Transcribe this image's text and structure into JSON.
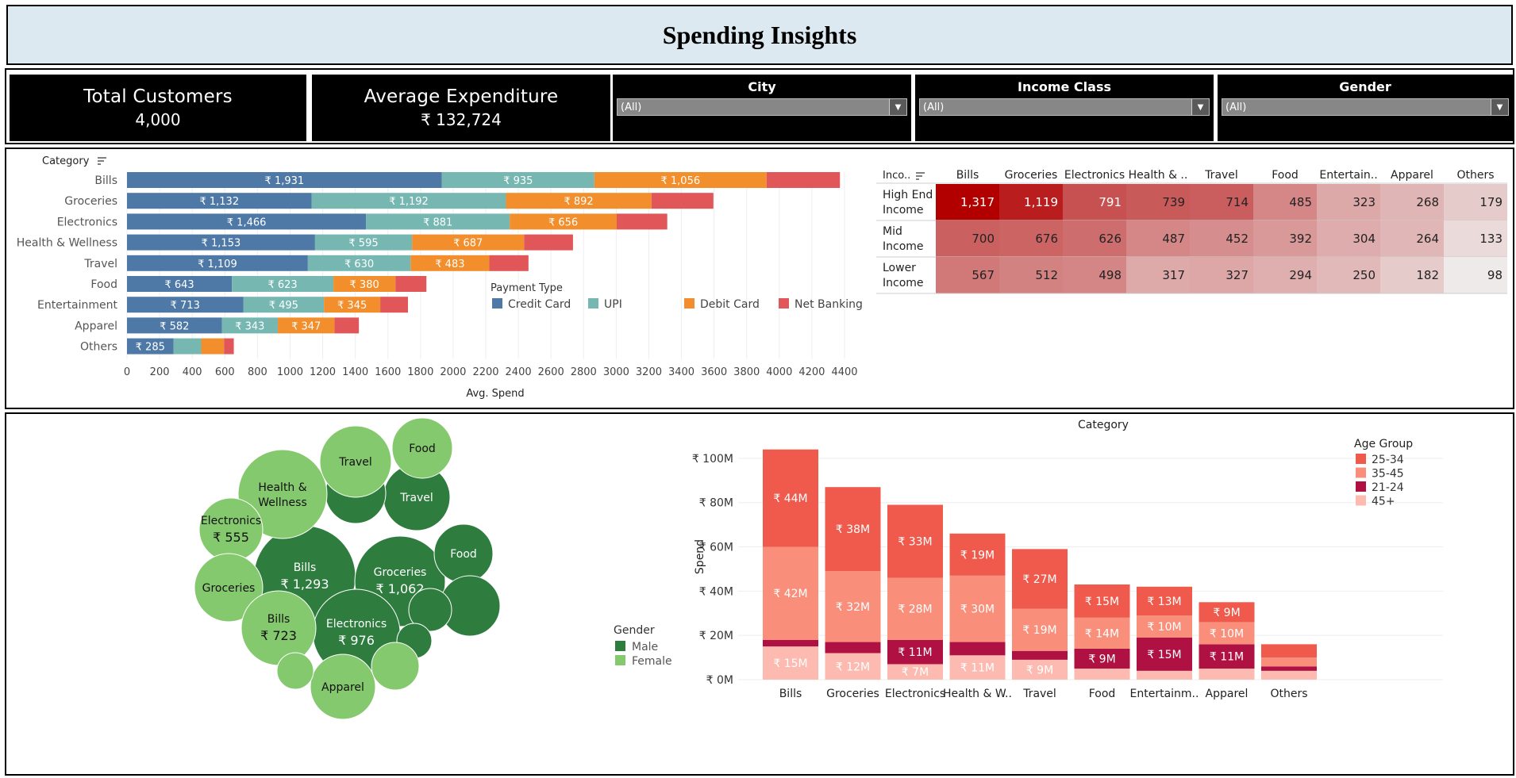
{
  "title": "Spending Insights",
  "kpis": {
    "total_customers_label": "Total Customers",
    "total_customers_value": "4,000",
    "avg_exp_label": "Average Expenditure",
    "avg_exp_value": "₹ 132,724"
  },
  "filters": [
    {
      "label": "City",
      "value": "(All)"
    },
    {
      "label": "Income Class",
      "value": "(All)"
    },
    {
      "label": "Gender",
      "value": "(All)"
    }
  ],
  "payment_chart": {
    "type": "bar",
    "orientation": "horizontal-stacked",
    "row_header": "Category",
    "xlabel": "Avg. Spend",
    "categories": [
      "Bills",
      "Groceries",
      "Electronics",
      "Health & Wellness",
      "Travel",
      "Food",
      "Entertainment",
      "Apparel",
      "Others"
    ],
    "series": [
      {
        "name": "Credit Card",
        "color": "#4e79a7",
        "values": [
          1931,
          1132,
          1466,
          1153,
          1109,
          643,
          713,
          582,
          285
        ],
        "labels": [
          "₹ 1,931",
          "₹ 1,132",
          "₹ 1,466",
          "₹ 1,153",
          "₹ 1,109",
          "₹ 643",
          "₹ 713",
          "₹ 582",
          "₹ 285"
        ]
      },
      {
        "name": "UPI",
        "color": "#76b7b2",
        "values": [
          935,
          1192,
          881,
          595,
          630,
          623,
          495,
          343,
          170
        ],
        "labels": [
          "₹ 935",
          "₹ 1,192",
          "₹ 881",
          "₹ 595",
          "₹ 630",
          "₹ 623",
          "₹ 495",
          "₹ 343",
          ""
        ]
      },
      {
        "name": "Debit Card",
        "color": "#f28e2b",
        "values": [
          1056,
          892,
          656,
          687,
          483,
          380,
          345,
          347,
          140
        ],
        "labels": [
          "₹ 1,056",
          "₹ 892",
          "₹ 656",
          "₹ 687",
          "₹ 483",
          "₹ 380",
          "₹ 345",
          "₹ 347",
          ""
        ]
      },
      {
        "name": "Net Banking",
        "color": "#e15759",
        "values": [
          450,
          380,
          310,
          300,
          240,
          190,
          170,
          150,
          60
        ],
        "labels": [
          "",
          "",
          "",
          "",
          "",
          "",
          "",
          "",
          ""
        ]
      }
    ],
    "xlim": [
      0,
      4400
    ],
    "ticks": [
      0,
      200,
      400,
      600,
      800,
      1000,
      1200,
      1400,
      1600,
      1800,
      2000,
      2200,
      2400,
      2600,
      2800,
      3000,
      3200,
      3400,
      3600,
      3800,
      4000,
      4200,
      4400
    ],
    "legend_title": "Payment Type"
  },
  "heatmap": {
    "type": "heatmap",
    "corner": "Inco..",
    "columns": [
      "Bills",
      "Groceries",
      "Electronics",
      "Health & ..",
      "Travel",
      "Food",
      "Entertain..",
      "Apparel",
      "Others"
    ],
    "rows": [
      {
        "label1": "High End",
        "label2": "Income",
        "values": [
          1317,
          1119,
          791,
          739,
          714,
          485,
          323,
          268,
          179
        ],
        "labels": [
          "1,317",
          "1,119",
          "791",
          "739",
          "714",
          "485",
          "323",
          "268",
          "179"
        ]
      },
      {
        "label1": "Mid",
        "label2": "Income",
        "values": [
          700,
          676,
          626,
          487,
          452,
          392,
          304,
          264,
          133
        ],
        "labels": [
          "700",
          "676",
          "626",
          "487",
          "452",
          "392",
          "304",
          "264",
          "133"
        ]
      },
      {
        "label1": "Lower",
        "label2": "Income",
        "values": [
          567,
          512,
          498,
          317,
          327,
          294,
          250,
          182,
          98
        ],
        "labels": [
          "567",
          "512",
          "498",
          "317",
          "327",
          "294",
          "250",
          "182",
          "98"
        ]
      }
    ]
  },
  "bubbles": {
    "type": "bubble",
    "legend_title": "Gender",
    "legend": [
      {
        "name": "Male",
        "color": "#2e7d3f"
      },
      {
        "name": "Female",
        "color": "#85c96e"
      }
    ],
    "items": [
      {
        "gender": "Male",
        "name": "Bills",
        "value": "₹ 1,293"
      },
      {
        "gender": "Male",
        "name": "Groceries",
        "value": "₹ 1,062"
      },
      {
        "gender": "Male",
        "name": "Electronics",
        "value": "₹ 976"
      },
      {
        "gender": "Male",
        "name": "Travel",
        "value": ""
      },
      {
        "gender": "Male",
        "name": "Food",
        "value": ""
      },
      {
        "gender": "Male",
        "name": "",
        "value": ""
      },
      {
        "gender": "Male",
        "name": "",
        "value": ""
      },
      {
        "gender": "Male",
        "name": "",
        "value": ""
      },
      {
        "gender": "Male",
        "name": "",
        "value": ""
      },
      {
        "gender": "Female",
        "name": "Health &",
        "name2": "Wellness",
        "value": ""
      },
      {
        "gender": "Female",
        "name": "Travel",
        "value": ""
      },
      {
        "gender": "Female",
        "name": "Food",
        "value": ""
      },
      {
        "gender": "Female",
        "name": "Electronics",
        "value": "₹ 555"
      },
      {
        "gender": "Female",
        "name": "Groceries",
        "value": ""
      },
      {
        "gender": "Female",
        "name": "Bills",
        "value": "₹ 723"
      },
      {
        "gender": "Female",
        "name": "Apparel",
        "value": ""
      },
      {
        "gender": "Female",
        "name": "",
        "value": ""
      },
      {
        "gender": "Female",
        "name": "",
        "value": ""
      }
    ]
  },
  "age_chart": {
    "type": "bar",
    "orientation": "vertical-stacked",
    "title": "Category",
    "ylabel": "Spend",
    "categories": [
      "Bills",
      "Groceries",
      "Electronics",
      "Health & W..",
      "Travel",
      "Food",
      "Entertainm..",
      "Apparel",
      "Others"
    ],
    "ylim": [
      0,
      110
    ],
    "yticks": [
      {
        "v": 0,
        "label": "₹ 0M"
      },
      {
        "v": 20,
        "label": "₹ 20M"
      },
      {
        "v": 40,
        "label": "₹ 40M"
      },
      {
        "v": 60,
        "label": "₹ 60M"
      },
      {
        "v": 80,
        "label": "₹ 80M"
      },
      {
        "v": 100,
        "label": "₹ 100M"
      }
    ],
    "legend_title": "Age Group",
    "stack_order": [
      "45+",
      "21-24",
      "35-45",
      "25-34"
    ],
    "series": [
      {
        "name": "25-34",
        "color": "#ef5a4c",
        "values": [
          44,
          38,
          33,
          19,
          27,
          15,
          13,
          9,
          6
        ],
        "labels": [
          "₹ 44M",
          "₹ 38M",
          "₹ 33M",
          "₹ 19M",
          "₹ 27M",
          "₹ 15M",
          "₹ 13M",
          "₹ 9M",
          ""
        ]
      },
      {
        "name": "35-45",
        "color": "#f98f7a",
        "values": [
          42,
          32,
          28,
          30,
          19,
          14,
          10,
          10,
          4
        ],
        "labels": [
          "₹ 42M",
          "₹ 32M",
          "₹ 28M",
          "₹ 30M",
          "₹ 19M",
          "₹ 14M",
          "₹ 10M",
          "₹ 10M",
          ""
        ]
      },
      {
        "name": "21-24",
        "color": "#ae1142",
        "values": [
          3,
          5,
          11,
          6,
          4,
          9,
          15,
          11,
          2
        ],
        "labels": [
          "",
          "",
          "₹ 11M",
          "",
          "",
          "₹ 9M",
          "₹ 15M",
          "₹ 11M",
          ""
        ]
      },
      {
        "name": "45+",
        "color": "#fdbab0",
        "values": [
          15,
          12,
          7,
          11,
          9,
          5,
          4,
          5,
          4
        ],
        "labels": [
          "₹ 15M",
          "₹ 12M",
          "₹ 7M",
          "₹ 11M",
          "₹ 9M",
          "",
          "",
          "",
          ""
        ]
      }
    ]
  },
  "chart_data": [
    {
      "type": "bar",
      "title": "",
      "xlabel": "Avg. Spend",
      "ylabel": "Category",
      "categories": [
        "Bills",
        "Groceries",
        "Electronics",
        "Health & Wellness",
        "Travel",
        "Food",
        "Entertainment",
        "Apparel",
        "Others"
      ],
      "series": [
        {
          "name": "Credit Card",
          "values": [
            1931,
            1132,
            1466,
            1153,
            1109,
            643,
            713,
            582,
            285
          ]
        },
        {
          "name": "UPI",
          "values": [
            935,
            1192,
            881,
            595,
            630,
            623,
            495,
            343,
            170
          ]
        },
        {
          "name": "Debit Card",
          "values": [
            1056,
            892,
            656,
            687,
            483,
            380,
            345,
            347,
            140
          ]
        },
        {
          "name": "Net Banking",
          "values": [
            450,
            380,
            310,
            300,
            240,
            190,
            170,
            150,
            60
          ]
        }
      ],
      "xlim": [
        0,
        4400
      ]
    },
    {
      "type": "heatmap",
      "rows": [
        "High End Income",
        "Mid Income",
        "Lower Income"
      ],
      "columns": [
        "Bills",
        "Groceries",
        "Electronics",
        "Health & ..",
        "Travel",
        "Food",
        "Entertain..",
        "Apparel",
        "Others"
      ],
      "values": [
        [
          1317,
          1119,
          791,
          739,
          714,
          485,
          323,
          268,
          179
        ],
        [
          700,
          676,
          626,
          487,
          452,
          392,
          304,
          264,
          133
        ],
        [
          567,
          512,
          498,
          317,
          327,
          294,
          250,
          182,
          98
        ]
      ]
    },
    {
      "type": "bar",
      "title": "Category",
      "ylabel": "Spend",
      "categories": [
        "Bills",
        "Groceries",
        "Electronics",
        "Health & W..",
        "Travel",
        "Food",
        "Entertainm..",
        "Apparel",
        "Others"
      ],
      "series": [
        {
          "name": "25-34",
          "values": [
            44,
            38,
            33,
            19,
            27,
            15,
            13,
            9,
            6
          ]
        },
        {
          "name": "35-45",
          "values": [
            42,
            32,
            28,
            30,
            19,
            14,
            10,
            10,
            4
          ]
        },
        {
          "name": "21-24",
          "values": [
            3,
            5,
            11,
            6,
            4,
            9,
            15,
            11,
            2
          ]
        },
        {
          "name": "45+",
          "values": [
            15,
            12,
            7,
            11,
            9,
            5,
            4,
            5,
            4
          ]
        }
      ],
      "ylim": [
        0,
        110
      ]
    }
  ]
}
